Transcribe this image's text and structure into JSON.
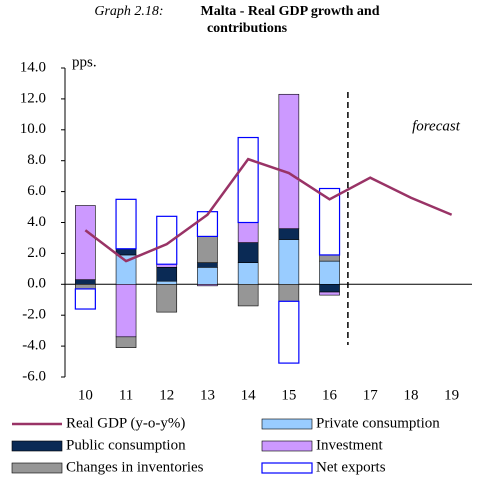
{
  "chart_data": {
    "type": "bar",
    "title_prefix": "Graph 2.18:",
    "title": "Malta - Real GDP growth and contributions",
    "y_unit": "pps.",
    "annotation": "forecast",
    "categories": [
      "10",
      "11",
      "12",
      "13",
      "14",
      "15",
      "16",
      "17",
      "18",
      "19"
    ],
    "series": [
      {
        "name": "Private consumption",
        "color": "#99ccff",
        "values": [
          0,
          1.9,
          0.2,
          1.1,
          1.4,
          2.9,
          1.5,
          null,
          null,
          null
        ]
      },
      {
        "name": "Public consumption",
        "color": "#0a2a55",
        "values": [
          0.3,
          0.4,
          0.9,
          0.3,
          1.3,
          0.7,
          -0.5,
          null,
          null,
          null
        ]
      },
      {
        "name": "Investment",
        "color": "#cc99ff",
        "values": [
          4.8,
          -3.4,
          0.2,
          -0.1,
          1.3,
          8.7,
          -0.2,
          null,
          null,
          null
        ]
      },
      {
        "name": "Changes in inventories",
        "color": "#969696",
        "values": [
          -0.3,
          -0.7,
          -1.8,
          1.7,
          -1.4,
          -1.1,
          0.4,
          null,
          null,
          null
        ]
      },
      {
        "name": "Net exports",
        "color": "#ffffff",
        "stroke": "#0000ff",
        "values": [
          -1.3,
          3.2,
          3.1,
          1.6,
          5.5,
          -4.0,
          4.3,
          null,
          null,
          null
        ]
      },
      {
        "name": "Real GDP (y-o-y%)",
        "type": "line",
        "color": "#993366",
        "values": [
          3.5,
          1.5,
          2.6,
          4.5,
          8.1,
          7.2,
          5.5,
          6.9,
          5.6,
          4.5
        ]
      }
    ],
    "ylim": [
      -6,
      14
    ],
    "yticks": [
      {
        "value": -6,
        "label": "-6.0"
      },
      {
        "value": -4,
        "label": "-4.0"
      },
      {
        "value": -2,
        "label": "-2.0"
      },
      {
        "value": 0,
        "label": "0.0"
      },
      {
        "value": 2,
        "label": "2.0"
      },
      {
        "value": 4,
        "label": "4.0"
      },
      {
        "value": 6,
        "label": "6.0"
      },
      {
        "value": 8,
        "label": "8.0"
      },
      {
        "value": 10,
        "label": "10.0"
      },
      {
        "value": 12,
        "label": "12.0"
      },
      {
        "value": 14,
        "label": "14.0"
      }
    ]
  }
}
